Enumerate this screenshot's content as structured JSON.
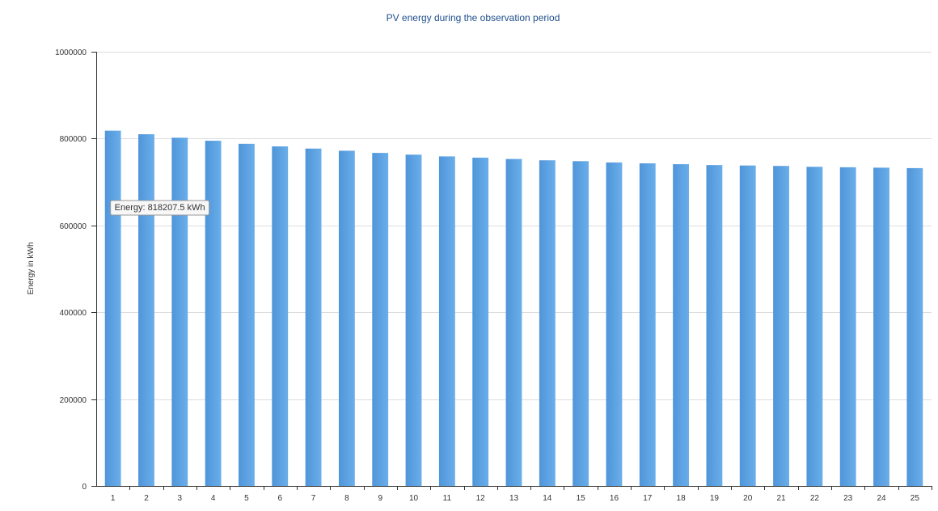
{
  "chart_data": {
    "type": "bar",
    "title": "PV energy during the observation period",
    "xlabel": "",
    "ylabel": "Energy in kWh",
    "ylim": [
      0,
      1000000
    ],
    "y_ticks": [
      "0",
      "200000",
      "400000",
      "600000",
      "800000",
      "1000000"
    ],
    "y_tick_values": [
      0,
      200000,
      400000,
      600000,
      800000,
      1000000
    ],
    "grid": true,
    "categories": [
      "1",
      "2",
      "3",
      "4",
      "5",
      "6",
      "7",
      "8",
      "9",
      "10",
      "11",
      "12",
      "13",
      "14",
      "15",
      "16",
      "17",
      "18",
      "19",
      "20",
      "21",
      "22",
      "23",
      "24",
      "25"
    ],
    "values": [
      818207.5,
      810000,
      802000,
      795000,
      788000,
      782000,
      777000,
      772000,
      767000,
      763000,
      759000,
      756000,
      753000,
      750000,
      748000,
      745000,
      743000,
      741000,
      739000,
      738000,
      737000,
      735000,
      734000,
      733000,
      732000
    ],
    "bar_color": "#6aaeea",
    "bar_color_dark": "#4f95d9",
    "tooltip": {
      "category_index": 0,
      "text": "Energy: 818207.5 kWh"
    }
  }
}
